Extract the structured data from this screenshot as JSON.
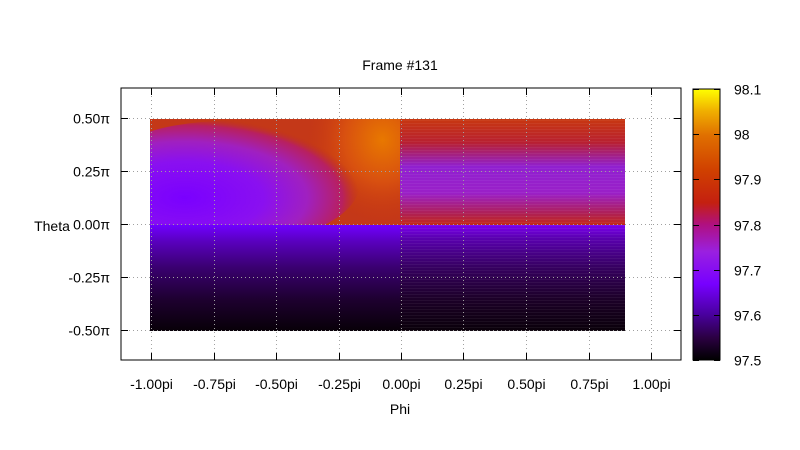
{
  "chart_data": {
    "type": "heatmap",
    "title": "Frame #131",
    "xlabel": "Phi",
    "ylabel": "Theta",
    "x_ticks": [
      "-1.00pi",
      "-0.75pi",
      "-0.50pi",
      "-0.25pi",
      "0.00pi",
      "0.25pi",
      "0.50pi",
      "0.75pi",
      "1.00pi"
    ],
    "x_tick_values": [
      -1.0,
      -0.75,
      -0.5,
      -0.25,
      0.0,
      0.25,
      0.5,
      0.75,
      1.0
    ],
    "xlim": [
      -1.12,
      1.12
    ],
    "y_ticks": [
      "0.50π",
      "0.25π",
      "0.00π",
      "-0.25π",
      "-0.50π"
    ],
    "y_tick_values": [
      0.5,
      0.25,
      0.0,
      -0.25,
      -0.5
    ],
    "ylim": [
      -0.64,
      0.64
    ],
    "data_extent": {
      "x": [
        -1.0,
        0.9
      ],
      "y": [
        -0.5,
        0.5
      ]
    },
    "colorbar": {
      "ticks": [
        "98.1",
        "98",
        "97.9",
        "97.8",
        "97.7",
        "97.6",
        "97.5"
      ],
      "tick_values": [
        98.1,
        98.0,
        97.9,
        97.8,
        97.7,
        97.6,
        97.5
      ],
      "range": [
        97.5,
        98.1
      ],
      "palette": [
        "#000000",
        "#3a0060",
        "#7700ff",
        "#a020d0",
        "#c01040",
        "#d03010",
        "#e06000",
        "#f0a000",
        "#ffff00"
      ]
    },
    "grid": true,
    "colors": {
      "cool_lobe": "#7700ff",
      "warm_bg": "#c83810",
      "hot_spot": "#e06a00",
      "cold_bottom": "#200020"
    }
  }
}
